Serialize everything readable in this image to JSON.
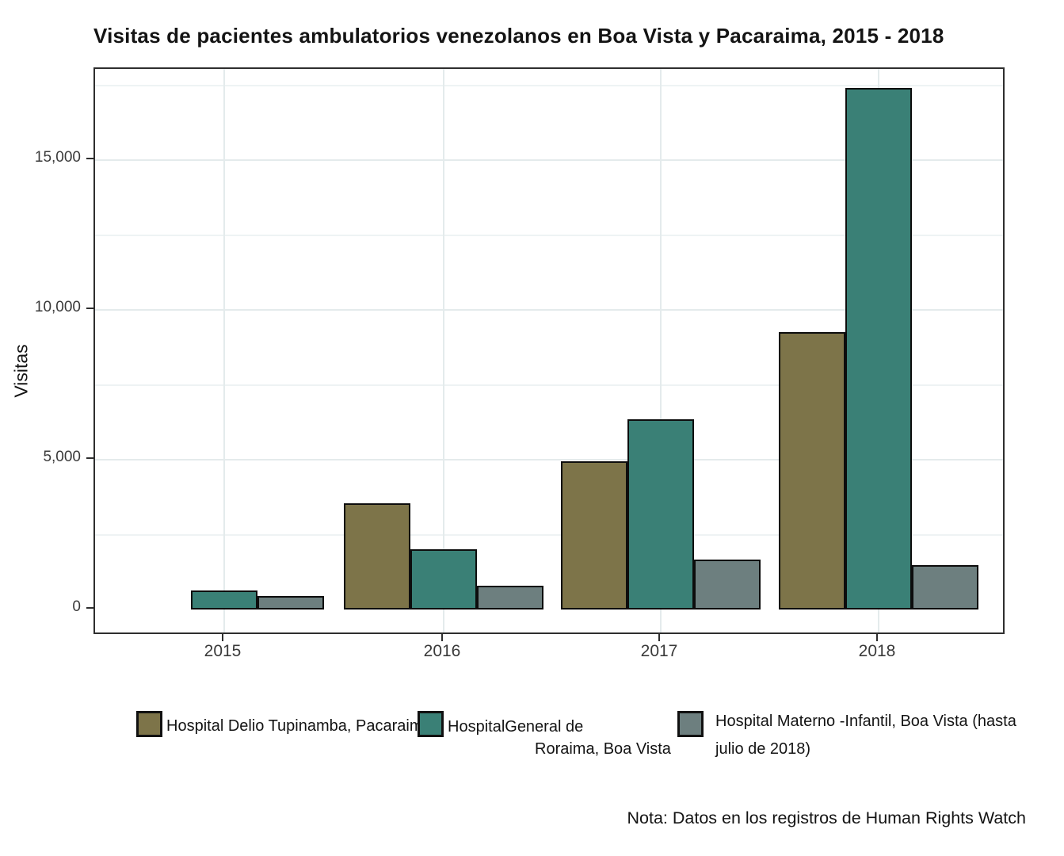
{
  "chart_data": {
    "type": "bar",
    "title": "Visitas de pacientes ambulatorios venezolanos en Boa Vista y Pacaraima, 2015 - 2018",
    "xlabel": "",
    "ylabel": "Visitas",
    "categories": [
      "2015",
      "2016",
      "2017",
      "2018"
    ],
    "series": [
      {
        "name": "Hospital Delio Tupinamba, Pacaraima",
        "color": "#7d7449",
        "values": [
          0,
          3550,
          4950,
          9250
        ]
      },
      {
        "name": "HospitalGeneral de Roraima, Boa Vista",
        "color": "#3a8076",
        "values": [
          630,
          2000,
          6350,
          17400
        ]
      },
      {
        "name": "Hospital Materno -Infantil, Boa Vista (hasta julio de 2018)",
        "color": "#6d7f7f",
        "values": [
          450,
          800,
          1670,
          1480
        ]
      }
    ],
    "ylim": [
      0,
      18000
    ],
    "y_ticks": [
      {
        "value": 0,
        "label": "0"
      },
      {
        "value": 5000,
        "label": "5,000"
      },
      {
        "value": 10000,
        "label": "10,000"
      },
      {
        "value": 15000,
        "label": "15,000"
      }
    ],
    "minor_gridlines": [
      2500,
      7500,
      12500,
      17500
    ],
    "grid": true,
    "legend_position": "bottom"
  },
  "legend": {
    "items": [
      {
        "color": "#7d7449",
        "lines": [
          "Hospital Delio Tupinamba, Pacaraima"
        ]
      },
      {
        "color": "#3a8076",
        "lines": [
          "HospitalGeneral de",
          "Roraima, Boa Vista"
        ]
      },
      {
        "color": "#6d7f7f",
        "lines": [
          "Hospital Materno -Infantil, Boa Vista (hasta",
          "julio de 2018)"
        ]
      }
    ]
  },
  "note": "Nota: Datos en los registros de Human Rights Watch",
  "colors": {
    "bar_border": "#0d0d0d",
    "panel_border": "#2e2e2e",
    "grid_major": "#e4ebec",
    "grid_minor": "#eef3f4",
    "title_text": "#141414",
    "axis_text": "#3a3a3a"
  }
}
